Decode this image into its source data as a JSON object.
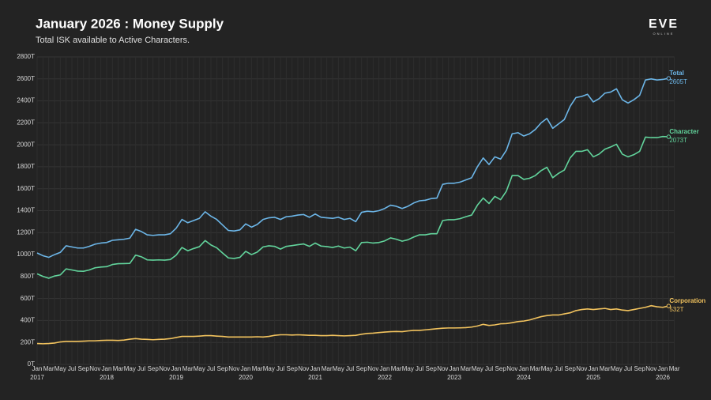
{
  "chart_data": {
    "type": "line",
    "title": "January 2026 : Money Supply",
    "subtitle": "Total ISK available to Active Characters.",
    "logo": {
      "text": "EVE",
      "subtext": "ONLINE"
    },
    "grid": true,
    "categories": [
      "Jan 2017",
      null,
      "Mar",
      null,
      "May",
      null,
      "Jul",
      null,
      "Sep",
      null,
      "Nov",
      null,
      "Jan 2018",
      null,
      "Mar",
      null,
      "May",
      null,
      "Jul",
      null,
      "Sep",
      null,
      "Nov",
      null,
      "Jan 2019",
      null,
      "Mar",
      null,
      "May",
      null,
      "Jul",
      null,
      "Sep",
      null,
      "Nov",
      null,
      "Jan 2020",
      null,
      "Mar",
      null,
      "May",
      null,
      "Jul",
      null,
      "Sep",
      null,
      "Nov",
      null,
      "Jan 2021",
      null,
      "Mar",
      null,
      "May",
      null,
      "Jul",
      null,
      "Sep",
      null,
      "Nov",
      null,
      "Jan 2022",
      null,
      "Mar",
      null,
      "May",
      null,
      "Jul",
      null,
      "Sep",
      null,
      "Nov",
      null,
      "Jan 2023",
      null,
      "Mar",
      null,
      "May",
      null,
      "Jul",
      null,
      "Sep",
      null,
      "Nov",
      null,
      "Jan 2024",
      null,
      "Mar",
      null,
      "May",
      null,
      "Jul",
      null,
      "Sep",
      null,
      "Nov",
      null,
      "Jan 2025",
      null,
      "Mar",
      null,
      "May",
      null,
      "Jul",
      null,
      "Sep",
      null,
      "Nov",
      null,
      "Jan 2026",
      null,
      "Mar"
    ],
    "ylim": [
      0,
      2800
    ],
    "yticks": [
      {
        "value": 0,
        "label": "0T"
      },
      {
        "value": 200,
        "label": "200T"
      },
      {
        "value": 400,
        "label": "400T"
      },
      {
        "value": 600,
        "label": "600T"
      },
      {
        "value": 800,
        "label": "800T"
      },
      {
        "value": 1000,
        "label": "1000T"
      },
      {
        "value": 1200,
        "label": "1200T"
      },
      {
        "value": 1400,
        "label": "1400T"
      },
      {
        "value": 1600,
        "label": "1600T"
      },
      {
        "value": 1800,
        "label": "1800T"
      },
      {
        "value": 2000,
        "label": "2000T"
      },
      {
        "value": 2200,
        "label": "2200T"
      },
      {
        "value": 2400,
        "label": "2400T"
      },
      {
        "value": 2600,
        "label": "2600T"
      },
      {
        "value": 2800,
        "label": "2800T"
      }
    ],
    "series": [
      {
        "name": "Total",
        "color": "#6cb6e8",
        "end_label": "2605T",
        "values": [
          1015,
          990,
          975,
          1000,
          1020,
          1080,
          1070,
          1060,
          1060,
          1075,
          1095,
          1105,
          1110,
          1130,
          1135,
          1140,
          1150,
          1230,
          1210,
          1180,
          1175,
          1180,
          1180,
          1190,
          1240,
          1320,
          1290,
          1310,
          1330,
          1390,
          1350,
          1320,
          1270,
          1220,
          1215,
          1225,
          1280,
          1250,
          1275,
          1320,
          1335,
          1340,
          1320,
          1345,
          1350,
          1360,
          1365,
          1340,
          1370,
          1340,
          1335,
          1330,
          1340,
          1320,
          1330,
          1300,
          1385,
          1395,
          1390,
          1400,
          1420,
          1450,
          1440,
          1420,
          1440,
          1470,
          1490,
          1495,
          1510,
          1515,
          1640,
          1650,
          1650,
          1660,
          1680,
          1700,
          1800,
          1880,
          1820,
          1890,
          1870,
          1950,
          2100,
          2110,
          2080,
          2100,
          2140,
          2200,
          2240,
          2150,
          2190,
          2230,
          2350,
          2430,
          2440,
          2460,
          2390,
          2420,
          2470,
          2480,
          2510,
          2410,
          2380,
          2410,
          2450,
          2590,
          2600,
          2590,
          2595,
          2605,
          null
        ]
      },
      {
        "name": "Character",
        "color": "#62d49c",
        "end_label": "2073T",
        "values": [
          825,
          802,
          785,
          805,
          815,
          870,
          860,
          850,
          848,
          860,
          880,
          887,
          890,
          910,
          917,
          918,
          920,
          995,
          980,
          952,
          950,
          952,
          950,
          955,
          995,
          1065,
          1035,
          1055,
          1072,
          1128,
          1088,
          1062,
          1015,
          970,
          965,
          975,
          1030,
          1000,
          1023,
          1070,
          1080,
          1075,
          1050,
          1075,
          1082,
          1090,
          1097,
          1075,
          1105,
          1078,
          1073,
          1065,
          1078,
          1060,
          1068,
          1035,
          1110,
          1113,
          1105,
          1110,
          1125,
          1152,
          1140,
          1122,
          1135,
          1160,
          1180,
          1180,
          1190,
          1190,
          1310,
          1318,
          1318,
          1327,
          1345,
          1360,
          1450,
          1515,
          1465,
          1530,
          1500,
          1578,
          1720,
          1720,
          1685,
          1695,
          1720,
          1765,
          1795,
          1700,
          1740,
          1770,
          1880,
          1940,
          1940,
          1955,
          1890,
          1915,
          1960,
          1980,
          2005,
          1915,
          1890,
          1910,
          1940,
          2070,
          2065,
          2065,
          2075,
          2073,
          null
        ]
      },
      {
        "name": "Corporation",
        "color": "#f2c35e",
        "end_label": "532T",
        "values": [
          190,
          188,
          190,
          195,
          205,
          210,
          210,
          210,
          212,
          215,
          215,
          218,
          220,
          220,
          218,
          222,
          230,
          235,
          230,
          228,
          225,
          228,
          230,
          235,
          245,
          255,
          255,
          255,
          258,
          262,
          262,
          258,
          255,
          250,
          250,
          250,
          250,
          250,
          252,
          250,
          255,
          265,
          270,
          270,
          268,
          270,
          268,
          265,
          265,
          262,
          262,
          265,
          262,
          260,
          262,
          265,
          275,
          282,
          285,
          290,
          295,
          298,
          300,
          298,
          305,
          310,
          310,
          315,
          320,
          325,
          330,
          332,
          332,
          333,
          335,
          340,
          350,
          365,
          355,
          360,
          370,
          372,
          380,
          390,
          395,
          405,
          420,
          435,
          445,
          450,
          450,
          460,
          470,
          490,
          500,
          505,
          500,
          505,
          510,
          500,
          505,
          495,
          490,
          500,
          510,
          520,
          535,
          525,
          520,
          532,
          null
        ]
      }
    ]
  }
}
